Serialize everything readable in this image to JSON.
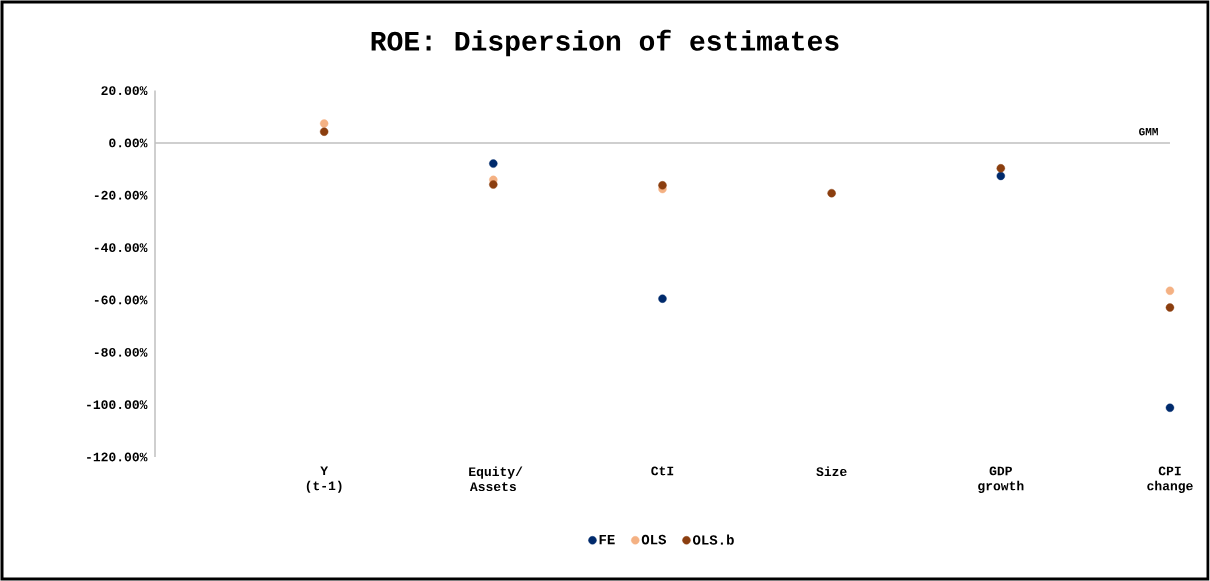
{
  "chart_data": {
    "type": "scatter",
    "title": "ROE: Dispersion of estimates",
    "categories": [
      null,
      "Y (t-1)",
      "Equity/ Assets",
      "CtI",
      "Size",
      "GDP growth",
      "CPI change"
    ],
    "series": [
      {
        "name": "FE",
        "color": "#002a6c",
        "values": [
          null,
          null,
          -7.9,
          -59.5,
          null,
          -12.6,
          -101.2
        ]
      },
      {
        "name": "OLS",
        "color": "#f4b183",
        "values": [
          null,
          7.4,
          -14.1,
          -17.6,
          null,
          null,
          -56.5
        ]
      },
      {
        "name": "OLS.b",
        "color": "#8b3e0f",
        "values": [
          null,
          4.3,
          -15.9,
          -16.2,
          -19.2,
          -9.7,
          -62.9
        ]
      }
    ],
    "ylim": [
      -120,
      20
    ],
    "yticks": [
      {
        "value": 20,
        "label": "20.00%"
      },
      {
        "value": 0,
        "label": "0.00%"
      },
      {
        "value": -20,
        "label": "-20.00%"
      },
      {
        "value": -40,
        "label": "-40.00%"
      },
      {
        "value": -60,
        "label": "-60.00%"
      },
      {
        "value": -80,
        "label": "-80.00%"
      },
      {
        "value": -100,
        "label": "-100.00%"
      },
      {
        "value": -120,
        "label": "-120.00%"
      }
    ],
    "annotations": [
      "GMM"
    ],
    "legend": "bottom",
    "marker": "circle"
  }
}
